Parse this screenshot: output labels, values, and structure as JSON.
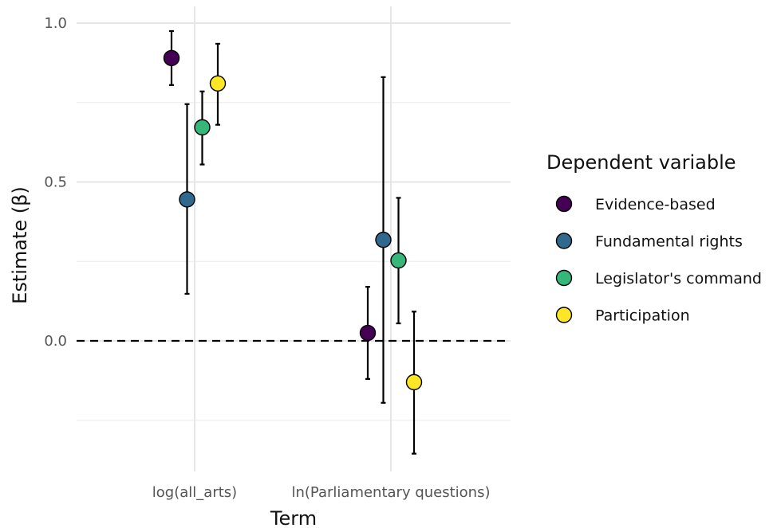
{
  "chart_data": {
    "type": "scatter",
    "title": "",
    "xlabel": "Term",
    "ylabel": "Estimate (β)",
    "ylim": [
      -0.42,
      1.05
    ],
    "yticks": [
      0.0,
      0.5,
      1.0
    ],
    "ytick_labels": [
      "0.0",
      "0.5",
      "1.0"
    ],
    "categories": [
      "log(all_arts)",
      "ln(Parliamentary questions)"
    ],
    "reference_line": {
      "y": 0,
      "style": "dashed"
    },
    "grid": true,
    "legend": {
      "title": "Dependent variable",
      "position": "right"
    },
    "series": [
      {
        "name": "Evidence-based",
        "color": "#440154",
        "points": [
          {
            "estimate": 0.89,
            "low": 0.805,
            "high": 0.975
          },
          {
            "estimate": 0.025,
            "low": -0.12,
            "high": 0.17
          }
        ]
      },
      {
        "name": "Fundamental rights",
        "color": "#31688E",
        "points": [
          {
            "estimate": 0.445,
            "low": 0.148,
            "high": 0.745
          },
          {
            "estimate": 0.318,
            "low": -0.195,
            "high": 0.83
          }
        ]
      },
      {
        "name": "Legislator's command",
        "color": "#35B779",
        "points": [
          {
            "estimate": 0.672,
            "low": 0.555,
            "high": 0.785
          },
          {
            "estimate": 0.253,
            "low": 0.055,
            "high": 0.45
          }
        ]
      },
      {
        "name": "Participation",
        "color": "#FDE725",
        "points": [
          {
            "estimate": 0.81,
            "low": 0.68,
            "high": 0.935
          },
          {
            "estimate": -0.13,
            "low": -0.355,
            "high": 0.092
          }
        ]
      }
    ]
  }
}
